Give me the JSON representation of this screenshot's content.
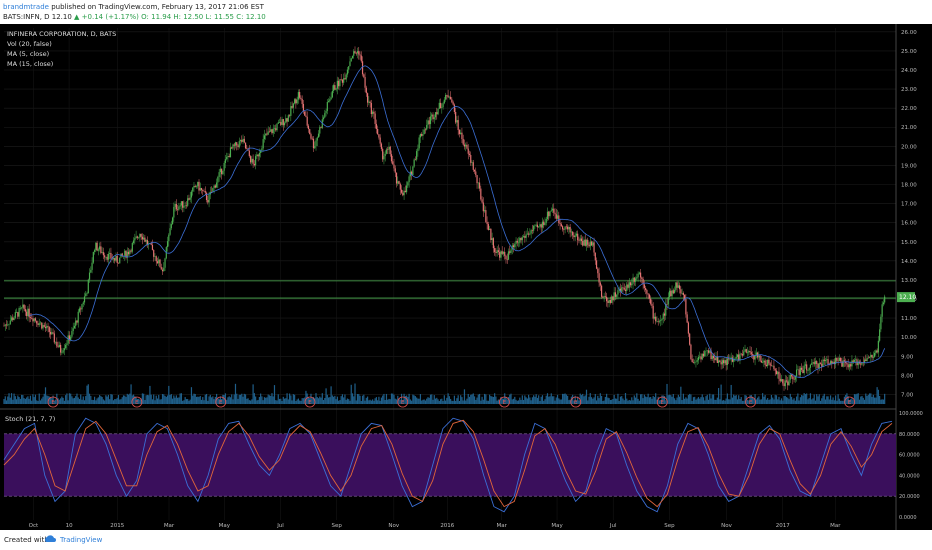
{
  "header": {
    "author": "brandmtrade",
    "published": "published on TradingView.com, February 13, 2017 21:06 EST",
    "symbol": "BATS:INFN, D",
    "last": "12.10",
    "change": "+0.14 (+1.17%)",
    "ohlc": "O: 11.94 H: 12.50 L: 11.55 C: 12.10"
  },
  "legend": {
    "title": "INFINERA CORPORATION, D, BATS",
    "vol": "Vol (20, false)",
    "ma5": "MA (5, close)",
    "ma15": "MA (15, close)"
  },
  "stoch_label": "Stoch (21, 7, 7)",
  "footer": {
    "created": "Created with",
    "brand": "TradingView"
  },
  "colors": {
    "bg": "#000000",
    "up": "#4caf50",
    "down": "#e57373",
    "ma": "#3b6fd6",
    "stochK": "#3b6fd6",
    "stochD": "#e0653a",
    "stochBand": "#3a0f5c",
    "hline": "#4caf50"
  },
  "chart_data": [
    {
      "type": "line",
      "description_label": "INFINERA CORPORATION, D, BATS",
      "x_ticks": [
        "Oct",
        "10",
        "2015",
        "Mar",
        "May",
        "Jul",
        "Sep",
        "Nov",
        "2016",
        "Mar",
        "May",
        "Jul",
        "Sep",
        "Nov",
        "2017",
        "Mar"
      ],
      "y_ticks": [
        "26.00",
        "25.00",
        "24.00",
        "23.00",
        "22.00",
        "21.00",
        "20.00",
        "19.00",
        "18.00",
        "17.00",
        "16.00",
        "15.00",
        "14.00",
        "13.00",
        "12.00",
        "11.00",
        "10.00",
        "9.00",
        "8.00",
        "7.00"
      ],
      "ylim": [
        6.5,
        26.2
      ],
      "price_path": [
        [
          0,
          10.6
        ],
        [
          5,
          11.5
        ],
        [
          12,
          10.3
        ],
        [
          15,
          9.3
        ],
        [
          18,
          10.2
        ],
        [
          22,
          12.5
        ],
        [
          24,
          14.8
        ],
        [
          27,
          14.3
        ],
        [
          30,
          14.0
        ],
        [
          33,
          14.5
        ],
        [
          36,
          15.5
        ],
        [
          39,
          14.6
        ],
        [
          42,
          13.5
        ],
        [
          45,
          16.8
        ],
        [
          48,
          17.0
        ],
        [
          51,
          18.0
        ],
        [
          54,
          17.2
        ],
        [
          57,
          18.5
        ],
        [
          60,
          19.8
        ],
        [
          63,
          20.3
        ],
        [
          66,
          19.0
        ],
        [
          69,
          20.5
        ],
        [
          72,
          21.0
        ],
        [
          75,
          21.5
        ],
        [
          78,
          22.8
        ],
        [
          80,
          21.3
        ],
        [
          82,
          20.0
        ],
        [
          84,
          21.2
        ],
        [
          87,
          23.0
        ],
        [
          90,
          23.6
        ],
        [
          92,
          24.8
        ],
        [
          94,
          25.0
        ],
        [
          96,
          22.5
        ],
        [
          98,
          21.5
        ],
        [
          100,
          19.5
        ],
        [
          102,
          19.8
        ],
        [
          104,
          18.0
        ],
        [
          106,
          17.5
        ],
        [
          108,
          18.8
        ],
        [
          110,
          20.5
        ],
        [
          113,
          21.5
        ],
        [
          116,
          22.3
        ],
        [
          118,
          22.8
        ],
        [
          120,
          21.0
        ],
        [
          122,
          20.0
        ],
        [
          124,
          19.0
        ],
        [
          126,
          17.5
        ],
        [
          128,
          15.8
        ],
        [
          130,
          14.5
        ],
        [
          133,
          14.2
        ],
        [
          136,
          15.0
        ],
        [
          139,
          15.5
        ],
        [
          142,
          15.8
        ],
        [
          145,
          16.8
        ],
        [
          147,
          16.0
        ],
        [
          150,
          15.5
        ],
        [
          153,
          15.0
        ],
        [
          156,
          14.8
        ],
        [
          158,
          12.2
        ],
        [
          160,
          11.9
        ],
        [
          162,
          12.3
        ],
        [
          165,
          12.7
        ],
        [
          168,
          13.4
        ],
        [
          170,
          12.5
        ],
        [
          172,
          11.0
        ],
        [
          174,
          10.8
        ],
        [
          176,
          12.2
        ],
        [
          178,
          12.8
        ],
        [
          180,
          12.0
        ],
        [
          182,
          8.6
        ],
        [
          184,
          9.0
        ],
        [
          186,
          9.2
        ],
        [
          188,
          8.9
        ],
        [
          190,
          8.7
        ],
        [
          193,
          8.8
        ],
        [
          196,
          9.2
        ],
        [
          199,
          9.0
        ],
        [
          202,
          8.6
        ],
        [
          204,
          8.4
        ],
        [
          206,
          7.5
        ],
        [
          208,
          7.8
        ],
        [
          211,
          8.3
        ],
        [
          214,
          8.5
        ],
        [
          217,
          8.7
        ],
        [
          220,
          8.8
        ],
        [
          223,
          8.5
        ],
        [
          226,
          8.7
        ],
        [
          229,
          8.9
        ],
        [
          231,
          9.2
        ],
        [
          232,
          11.2
        ],
        [
          233,
          12.1
        ]
      ],
      "last_label": "12.10",
      "horizontal_lines": [
        12.95,
        12.05
      ],
      "earnings_markers": [
        "E",
        "E",
        "E",
        "E",
        "E",
        "E",
        "E",
        "E",
        "E",
        "E"
      ]
    },
    {
      "type": "line",
      "title": "Stoch (21, 7, 7)",
      "y_ticks": [
        "100.0000",
        "80.0000",
        "60.0000",
        "40.0000",
        "20.0000",
        "0.0000"
      ],
      "ylim": [
        0,
        100
      ],
      "band": [
        20,
        80
      ],
      "series": [
        {
          "values": [
            55,
            70,
            85,
            90,
            40,
            15,
            25,
            80,
            95,
            90,
            70,
            40,
            20,
            35,
            80,
            90,
            85,
            60,
            30,
            15,
            40,
            75,
            90,
            92,
            70,
            50,
            40,
            60,
            85,
            90,
            80,
            55,
            30,
            20,
            50,
            80,
            90,
            88,
            60,
            30,
            10,
            15,
            50,
            85,
            95,
            92,
            75,
            40,
            10,
            5,
            20,
            60,
            90,
            85,
            60,
            35,
            15,
            25,
            60,
            85,
            80,
            50,
            25,
            10,
            5,
            30,
            70,
            90,
            85,
            60,
            30,
            15,
            20,
            50,
            80,
            88,
            75,
            45,
            25,
            20,
            50,
            80,
            85,
            60,
            40,
            70,
            90,
            92
          ]
        },
        {
          "values": [
            50,
            60,
            75,
            85,
            60,
            30,
            25,
            55,
            85,
            92,
            80,
            55,
            30,
            30,
            60,
            82,
            88,
            70,
            45,
            25,
            30,
            60,
            82,
            90,
            78,
            58,
            45,
            55,
            78,
            88,
            82,
            62,
            40,
            25,
            40,
            68,
            85,
            88,
            70,
            42,
            20,
            15,
            35,
            70,
            90,
            93,
            82,
            55,
            25,
            10,
            15,
            45,
            78,
            85,
            70,
            45,
            25,
            22,
            45,
            75,
            82,
            62,
            38,
            18,
            10,
            22,
            55,
            82,
            86,
            68,
            42,
            22,
            20,
            40,
            70,
            85,
            80,
            55,
            32,
            22,
            40,
            70,
            82,
            68,
            48,
            60,
            82,
            90
          ]
        }
      ]
    }
  ]
}
